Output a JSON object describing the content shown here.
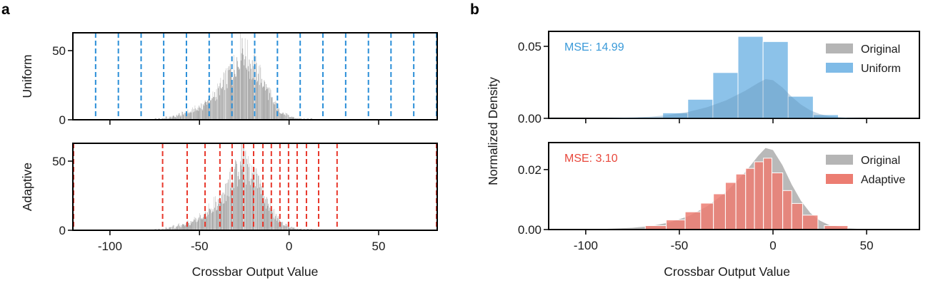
{
  "panels": {
    "a": "a",
    "b": "b"
  },
  "colors": {
    "uniform_line": "#2b8fd8",
    "adaptive_line": "#e8382c",
    "original_bar": "#9e9e9e",
    "original_fill": "#b5b5b5",
    "uniform_bar": "#7fbbe7",
    "adaptive_bar": "#ec7d72",
    "uniform_text": "#3a9ad9",
    "adaptive_text": "#e8483c"
  },
  "chart_data": [
    {
      "id": "a-uniform",
      "type": "bar",
      "title": "",
      "xlabel": "",
      "ylabel": "Uniform",
      "xlim": [
        -120.7,
        82.7
      ],
      "ylim": [
        0,
        62.9
      ],
      "xticks": [
        -100,
        -50,
        0,
        50
      ],
      "xtick_labels": [
        "",
        "",
        "",
        ""
      ],
      "yticks": [
        0,
        50
      ],
      "ytick_labels": [
        "0",
        "50"
      ],
      "histogram_bin_width": 1,
      "histogram_start": -75,
      "histogram_counts": [
        1,
        0,
        1,
        0,
        1,
        1,
        2,
        1,
        2,
        2,
        3,
        2,
        3,
        4,
        3,
        5,
        4,
        5,
        6,
        5,
        6,
        7,
        8,
        7,
        9,
        10,
        9,
        11,
        12,
        14,
        15,
        13,
        17,
        19,
        18,
        21,
        24,
        22,
        27,
        30,
        29,
        34,
        35,
        33,
        38,
        44,
        42,
        49,
        58,
        52,
        47,
        45,
        43,
        40,
        37,
        38,
        36,
        35,
        33,
        30,
        28,
        25,
        22,
        20,
        18,
        14,
        12,
        11,
        9,
        7,
        6,
        5,
        4,
        4,
        3,
        2,
        2,
        2,
        1,
        1,
        1,
        1,
        0,
        1,
        0,
        1,
        0,
        1,
        0,
        0,
        0,
        0,
        0,
        0,
        0,
        0,
        0,
        0,
        0,
        0,
        0,
        0,
        0,
        0,
        0,
        0,
        0,
        0,
        0,
        0,
        0
      ],
      "quantization_levels": [
        -120.7,
        -108.0,
        -95.3,
        -82.6,
        -70.0,
        -57.3,
        -44.6,
        -31.9,
        -19.2,
        -6.5,
        6.2,
        18.9,
        31.6,
        44.3,
        56.9,
        69.6,
        82.3
      ],
      "line_style": "dashed"
    },
    {
      "id": "a-adaptive",
      "type": "bar",
      "title": "",
      "xlabel": "Crossbar Output Value",
      "ylabel": "Adaptive",
      "xlim": [
        -120.7,
        82.7
      ],
      "ylim": [
        0,
        62.9
      ],
      "xticks": [
        -100,
        -50,
        0,
        50
      ],
      "xtick_labels": [
        "-100",
        "-50",
        "0",
        "50"
      ],
      "yticks": [
        0,
        50
      ],
      "ytick_labels": [
        "0",
        "50"
      ],
      "quantization_levels": [
        -120.3,
        -70.6,
        -56.9,
        -46.9,
        -38.6,
        -31.8,
        -25.4,
        -19.8,
        -14.6,
        -9.9,
        -5.1,
        -0.3,
        4.5,
        9.7,
        16.5,
        26.8,
        82.3
      ],
      "line_style": "dashed"
    },
    {
      "id": "b-uniform",
      "type": "bar",
      "title": "",
      "xlabel": "",
      "ylabel": "Normalized Density",
      "xlim": [
        -119.8,
        78.2
      ],
      "ylim": [
        0,
        0.0604
      ],
      "xticks": [
        -100,
        -50,
        0,
        50
      ],
      "xtick_labels": [
        "",
        "",
        "",
        ""
      ],
      "yticks": [
        0.0,
        0.05
      ],
      "ytick_labels": [
        "0.00",
        "0.05"
      ],
      "annotation": "MSE: 14.99",
      "legend": [
        "Original",
        "Uniform"
      ],
      "legend_position": "top-right",
      "bin_edges": [
        -85.7,
        -72.3,
        -58.9,
        -45.5,
        -32.1,
        -18.7,
        -5.3,
        8.1,
        21.5,
        34.9
      ],
      "values": [
        0.0004,
        0.0008,
        0.0038,
        0.0132,
        0.0318,
        0.0569,
        0.0533,
        0.0153,
        0.0025
      ],
      "original_density": {
        "x": [
          -120,
          -90,
          -75,
          -65,
          -55,
          -45,
          -35,
          -25,
          -15,
          -8,
          -4,
          0,
          5,
          10,
          15,
          20,
          25,
          30,
          40,
          50,
          78
        ],
        "y": [
          0,
          0.0002,
          0.0006,
          0.0012,
          0.0024,
          0.0045,
          0.0078,
          0.0125,
          0.019,
          0.0245,
          0.0272,
          0.0265,
          0.0215,
          0.015,
          0.0095,
          0.0055,
          0.003,
          0.0015,
          0.0004,
          0.0001,
          0
        ]
      }
    },
    {
      "id": "b-adaptive",
      "type": "bar",
      "title": "",
      "xlabel": "Crossbar Output Value",
      "ylabel": "",
      "xlim": [
        -119.8,
        78.2
      ],
      "ylim": [
        0,
        0.029
      ],
      "xticks": [
        -100,
        -50,
        0,
        50
      ],
      "xtick_labels": [
        "-100",
        "-50",
        "0",
        "50"
      ],
      "yticks": [
        0.0,
        0.02
      ],
      "ytick_labels": [
        "0.00",
        "0.02"
      ],
      "annotation": "MSE: 3.10",
      "legend": [
        "Original",
        "Adaptive"
      ],
      "legend_position": "top-right",
      "bin_edges": [
        -68.2,
        -57.0,
        -46.9,
        -38.6,
        -31.8,
        -25.4,
        -19.8,
        -14.6,
        -9.9,
        -5.1,
        -0.6,
        5.2,
        10.0,
        15.8,
        24.0,
        27.4,
        40.0
      ],
      "values": [
        0.0013,
        0.0032,
        0.0059,
        0.0088,
        0.0119,
        0.0157,
        0.0185,
        0.0204,
        0.0226,
        0.0238,
        0.0189,
        0.013,
        0.0087,
        0.0048,
        0,
        0.0013
      ],
      "original_density": {
        "x": [
          -120,
          -90,
          -75,
          -65,
          -55,
          -45,
          -35,
          -25,
          -15,
          -8,
          -4,
          0,
          5,
          10,
          15,
          20,
          25,
          30,
          40,
          50,
          78
        ],
        "y": [
          0,
          0.0002,
          0.0006,
          0.0012,
          0.0024,
          0.0045,
          0.0078,
          0.0125,
          0.019,
          0.0245,
          0.0272,
          0.0265,
          0.0215,
          0.015,
          0.0095,
          0.0055,
          0.003,
          0.0015,
          0.0004,
          0.0001,
          0
        ]
      }
    }
  ]
}
